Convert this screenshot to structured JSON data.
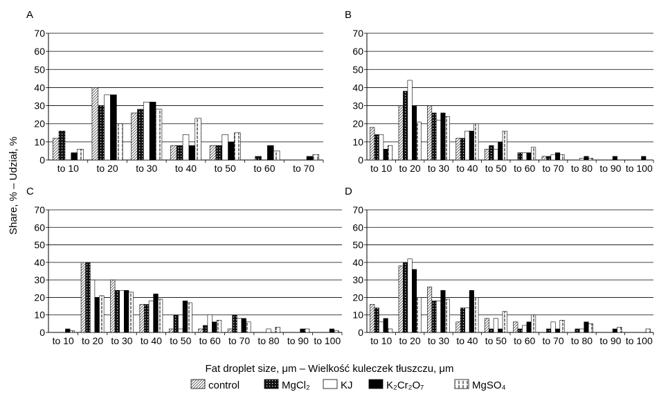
{
  "figure": {
    "ylabel": "Share, % – Udział, %",
    "xlabel": "Fat droplet size, μm – Wielkość kuleczek tłuszczu, μm"
  },
  "legend": [
    {
      "key": "control",
      "label": "control",
      "pattern": "hatch"
    },
    {
      "key": "mgcl2",
      "label": "MgCl₂",
      "pattern": "dots"
    },
    {
      "key": "kj",
      "label": "KJ",
      "pattern": "white"
    },
    {
      "key": "k2cr2o7",
      "label": "K₂Cr₂O₇",
      "pattern": "black"
    },
    {
      "key": "mgso4",
      "label": "MgSO₄",
      "pattern": "dashed"
    }
  ],
  "chart_data": [
    {
      "panel": "A",
      "type": "bar",
      "ylim": [
        0,
        70
      ],
      "yticks": [
        0,
        10,
        20,
        30,
        40,
        50,
        60,
        70
      ],
      "grid": true,
      "categories": [
        "to 10",
        "to 20",
        "to 30",
        "to 40",
        "to 50",
        "to 60",
        "to 70"
      ],
      "series": [
        {
          "name": "control",
          "values": [
            12,
            40,
            26,
            8,
            8,
            0,
            0
          ]
        },
        {
          "name": "MgCl₂",
          "values": [
            16,
            30,
            28,
            8,
            8,
            2,
            0
          ]
        },
        {
          "name": "KJ",
          "values": [
            0,
            36,
            32,
            14,
            14,
            0,
            0
          ]
        },
        {
          "name": "K₂Cr₂O₇",
          "values": [
            4,
            36,
            32,
            8,
            10,
            8,
            2
          ]
        },
        {
          "name": "MgSO₄",
          "values": [
            6,
            20,
            28,
            23,
            15,
            5,
            3
          ]
        }
      ]
    },
    {
      "panel": "B",
      "type": "bar",
      "ylim": [
        0,
        70
      ],
      "yticks": [
        0,
        10,
        20,
        30,
        40,
        50,
        60,
        70
      ],
      "grid": true,
      "categories": [
        "to 10",
        "to 20",
        "to 30",
        "to 40",
        "to 50",
        "to 60",
        "to 70",
        "to 80",
        "to 90",
        "to 100"
      ],
      "series": [
        {
          "name": "control",
          "values": [
            18,
            30,
            30,
            12,
            6,
            0,
            2,
            0,
            0,
            0
          ]
        },
        {
          "name": "MgCl₂",
          "values": [
            14,
            38,
            26,
            12,
            8,
            4,
            2,
            0,
            0,
            0
          ]
        },
        {
          "name": "KJ",
          "values": [
            14,
            44,
            22,
            16,
            6,
            4,
            3,
            1,
            0,
            0
          ]
        },
        {
          "name": "K₂Cr₂O₇",
          "values": [
            6,
            30,
            26,
            16,
            10,
            4,
            4,
            2,
            2,
            2
          ]
        },
        {
          "name": "MgSO₄",
          "values": [
            8,
            21,
            24,
            20,
            16,
            7,
            3,
            1,
            0,
            0
          ]
        }
      ]
    },
    {
      "panel": "C",
      "type": "bar",
      "ylim": [
        0,
        70
      ],
      "yticks": [
        0,
        10,
        20,
        30,
        40,
        50,
        60,
        70
      ],
      "grid": true,
      "categories": [
        "to 10",
        "to 20",
        "to 30",
        "to 40",
        "to 50",
        "to 60",
        "to 70",
        "to 80",
        "to 90",
        "to 100"
      ],
      "series": [
        {
          "name": "control",
          "values": [
            0,
            40,
            30,
            16,
            2,
            2,
            2,
            0,
            0,
            0
          ]
        },
        {
          "name": "MgCl₂",
          "values": [
            0,
            40,
            24,
            16,
            10,
            4,
            10,
            0,
            0,
            0
          ]
        },
        {
          "name": "KJ",
          "values": [
            0,
            30,
            24,
            18,
            2,
            10,
            8,
            2,
            0,
            0
          ]
        },
        {
          "name": "K₂Cr₂O₇",
          "values": [
            2,
            20,
            24,
            22,
            18,
            6,
            8,
            0,
            2,
            2
          ]
        },
        {
          "name": "MgSO₄",
          "values": [
            1,
            21,
            23,
            19,
            17,
            7,
            6,
            3,
            2,
            1
          ]
        }
      ]
    },
    {
      "panel": "D",
      "type": "bar",
      "ylim": [
        0,
        70
      ],
      "yticks": [
        0,
        10,
        20,
        30,
        40,
        50,
        60,
        70
      ],
      "grid": true,
      "categories": [
        "to 10",
        "to 20",
        "to 30",
        "to 40",
        "to 50",
        "to 60",
        "to 70",
        "to 80",
        "to 90",
        "to 100"
      ],
      "series": [
        {
          "name": "control",
          "values": [
            16,
            38,
            26,
            6,
            8,
            6,
            0,
            0,
            0,
            0
          ]
        },
        {
          "name": "MgCl₂",
          "values": [
            14,
            40,
            18,
            14,
            2,
            2,
            2,
            2,
            0,
            0
          ]
        },
        {
          "name": "KJ",
          "values": [
            6,
            42,
            18,
            14,
            8,
            4,
            6,
            2,
            0,
            0
          ]
        },
        {
          "name": "K₂Cr₂O₇",
          "values": [
            8,
            36,
            24,
            24,
            2,
            6,
            2,
            6,
            2,
            0
          ]
        },
        {
          "name": "MgSO₄",
          "values": [
            2,
            20,
            19,
            20,
            12,
            10,
            7,
            5,
            3,
            2
          ]
        }
      ]
    }
  ]
}
